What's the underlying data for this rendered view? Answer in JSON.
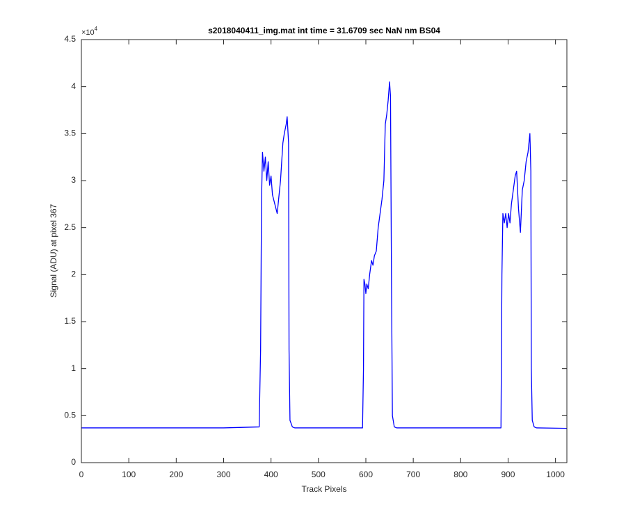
{
  "chart_data": {
    "type": "line",
    "title": "s2018040411_img.mat int time = 31.6709 sec  NaN nm BS04",
    "x_label": "Track Pixels",
    "y_label": "Signal (ADU) at pixel 367",
    "y_exponent_base": "×10",
    "y_exponent_power": "4",
    "color": "#0000ff",
    "xlim": [
      0,
      1024
    ],
    "xticks": [
      0,
      100,
      200,
      300,
      400,
      500,
      600,
      700,
      800,
      900,
      1000
    ],
    "ylim": [
      0,
      45000
    ],
    "yticks": [
      0,
      {
        "value": 5000,
        "label": "0.5"
      },
      {
        "value": 10000,
        "label": "1"
      },
      {
        "value": 15000,
        "label": "1.5"
      },
      {
        "value": 20000,
        "label": "2"
      },
      {
        "value": 25000,
        "label": "2.5"
      },
      {
        "value": 30000,
        "label": "3"
      },
      {
        "value": 35000,
        "label": "3.5"
      },
      {
        "value": 40000,
        "label": "4"
      },
      {
        "value": 45000,
        "label": "4.5"
      }
    ],
    "x": [
      0,
      100,
      200,
      300,
      375,
      378,
      380,
      382,
      385,
      388,
      391,
      394,
      397,
      400,
      403,
      408,
      413,
      416,
      420,
      425,
      428,
      432,
      434,
      437,
      438,
      440,
      445,
      450,
      550,
      593,
      595,
      596,
      598,
      600,
      602,
      605,
      608,
      612,
      615,
      618,
      622,
      626,
      630,
      634,
      638,
      641,
      644,
      647,
      650,
      652,
      654,
      656,
      660,
      665,
      750,
      885,
      887,
      889,
      892,
      895,
      898,
      901,
      904,
      907,
      911,
      915,
      918,
      922,
      926,
      930,
      934,
      938,
      942,
      946,
      948,
      949,
      951,
      955,
      960,
      1024
    ],
    "values": [
      3700,
      3700,
      3700,
      3700,
      3800,
      12000,
      28000,
      33000,
      31000,
      32500,
      30000,
      32000,
      29500,
      30500,
      28500,
      27500,
      26500,
      28000,
      30000,
      34000,
      35000,
      36000,
      36800,
      34000,
      12000,
      4500,
      3800,
      3700,
      3700,
      3700,
      10000,
      19500,
      19000,
      18000,
      19000,
      18500,
      20000,
      21500,
      21000,
      22000,
      22500,
      25000,
      26500,
      28000,
      30000,
      36000,
      37000,
      38500,
      40500,
      39000,
      20000,
      5000,
      3800,
      3700,
      3700,
      3700,
      20000,
      26500,
      25500,
      26500,
      25000,
      26500,
      25500,
      27500,
      29000,
      30500,
      31000,
      27000,
      24500,
      29000,
      30000,
      32000,
      33000,
      35000,
      31000,
      10000,
      4500,
      3800,
      3700,
      3650
    ]
  }
}
